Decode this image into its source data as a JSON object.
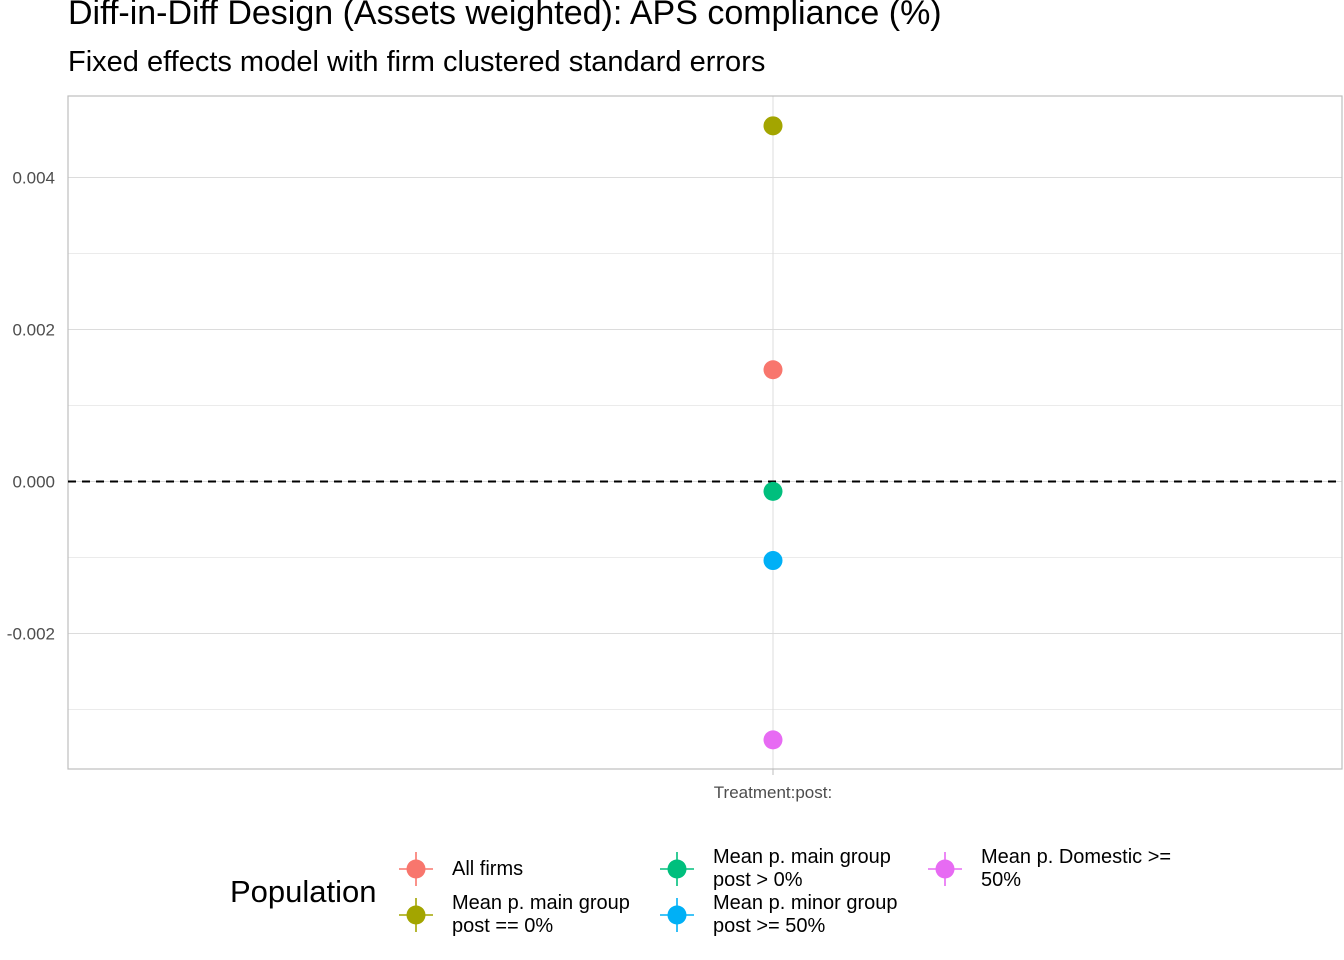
{
  "chart_data": {
    "type": "scatter",
    "title": "Diff-in-Diff Design (Assets weighted): APS compliance (%)",
    "subtitle": "Fixed effects model with firm clustered standard errors",
    "xlabel": "",
    "ylabel": "",
    "categories": [
      "Treatment:post:"
    ],
    "ylim": [
      -0.0038,
      0.0051
    ],
    "y_ticks": [
      0.004,
      0.002,
      0.0,
      -0.002
    ],
    "y_tick_labels": [
      "0.004",
      "0.002",
      "0.000",
      "-0.002"
    ],
    "grid": true,
    "reference_line": {
      "y": 0,
      "style": "dashed"
    },
    "legend": {
      "title": "Population",
      "position": "bottom"
    },
    "series": [
      {
        "name": "All firms",
        "color": "#F8766D",
        "values": [
          0.00147
        ]
      },
      {
        "name": "Mean p. main group post == 0%",
        "color": "#A3A500",
        "values": [
          0.00468
        ]
      },
      {
        "name": "Mean p. main group post > 0%",
        "color": "#00BF7D",
        "values": [
          -0.00013
        ]
      },
      {
        "name": "Mean p. minor group post >= 50%",
        "color": "#00B0F6",
        "values": [
          -0.00104
        ]
      },
      {
        "name": "Mean p. Domestic >= 50%",
        "color": "#E76BF3",
        "values": [
          -0.0034
        ]
      }
    ]
  },
  "legend_labels": [
    "All firms",
    "Mean p. main group\npost == 0%",
    "Mean p. main group\npost > 0%",
    "Mean p. minor group\npost >= 50%",
    "Mean p. Domestic >=\n50%"
  ]
}
